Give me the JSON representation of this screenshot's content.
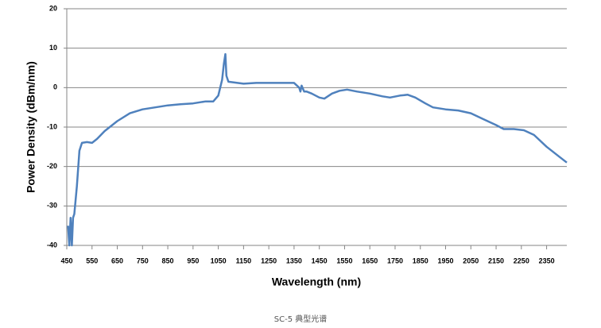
{
  "chart_data": {
    "type": "line",
    "xlabel": "Wavelength (nm)",
    "ylabel": "Power Density (dBm/nm)",
    "caption": "SC-5  典型光谱",
    "x": [
      455,
      460,
      465,
      470,
      475,
      480,
      490,
      500,
      510,
      530,
      550,
      570,
      600,
      650,
      700,
      750,
      800,
      850,
      900,
      950,
      1000,
      1030,
      1050,
      1065,
      1072,
      1078,
      1082,
      1090,
      1150,
      1200,
      1300,
      1350,
      1370,
      1375,
      1380,
      1390,
      1400,
      1420,
      1450,
      1470,
      1500,
      1530,
      1560,
      1600,
      1650,
      1700,
      1730,
      1770,
      1800,
      1830,
      1870,
      1900,
      1950,
      2000,
      2050,
      2100,
      2150,
      2180,
      2220,
      2260,
      2300,
      2350,
      2400,
      2430
    ],
    "series": [
      {
        "name": "SC-5",
        "color": "#4f81bd",
        "values": [
          -35,
          -40,
          -33,
          -40,
          -33,
          -32,
          -25,
          -16,
          -14,
          -13.8,
          -14,
          -13,
          -11,
          -8.5,
          -6.5,
          -5.5,
          -5,
          -4.5,
          -4.2,
          -4,
          -3.5,
          -3.5,
          -2,
          2,
          6,
          8.5,
          3,
          1.5,
          1,
          1.2,
          1.2,
          1.2,
          0,
          -1,
          0.5,
          -1,
          -1,
          -1.5,
          -2.5,
          -2.8,
          -1.5,
          -0.8,
          -0.5,
          -1,
          -1.5,
          -2.2,
          -2.5,
          -2,
          -1.8,
          -2.5,
          -4,
          -5,
          -5.5,
          -5.8,
          -6.5,
          -8,
          -9.5,
          -10.5,
          -10.5,
          -10.8,
          -12,
          -15,
          -17.5,
          -19
        ]
      }
    ],
    "xlim": [
      450,
      2430
    ],
    "xticks": [
      450,
      550,
      650,
      750,
      850,
      950,
      1050,
      1150,
      1250,
      1350,
      1450,
      1550,
      1650,
      1750,
      1850,
      1950,
      2050,
      2150,
      2250,
      2350
    ],
    "ylim": [
      -40,
      20
    ],
    "yticks": [
      -40,
      -30,
      -20,
      -10,
      0,
      10,
      20
    ],
    "grid": true
  }
}
